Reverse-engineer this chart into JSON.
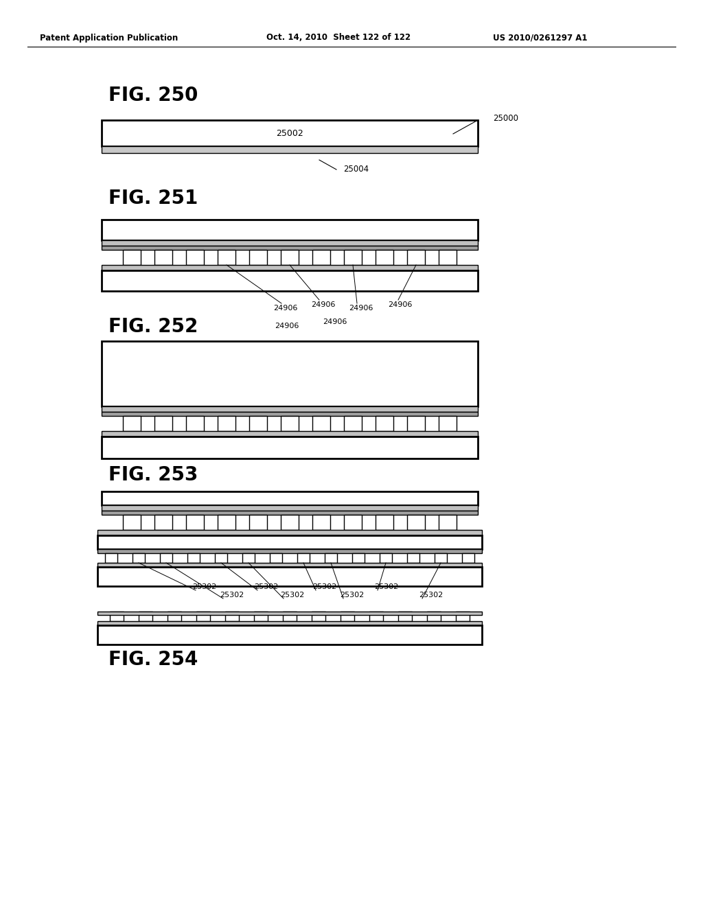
{
  "header_left": "Patent Application Publication",
  "header_mid": "Oct. 14, 2010  Sheet 122 of 122",
  "header_right": "US 2010/0261297 A1",
  "bg_color": "#ffffff",
  "fig250_label": "FIG. 250",
  "fig251_label": "FIG. 251",
  "fig252_label": "FIG. 252",
  "fig253_label": "FIG. 253",
  "fig254_label": "FIG. 254",
  "ref_25000": "25000",
  "ref_25002": "25002",
  "ref_25004": "25004",
  "ref_24906": "24906",
  "ref_25302": "25302",
  "line_color": "#000000"
}
